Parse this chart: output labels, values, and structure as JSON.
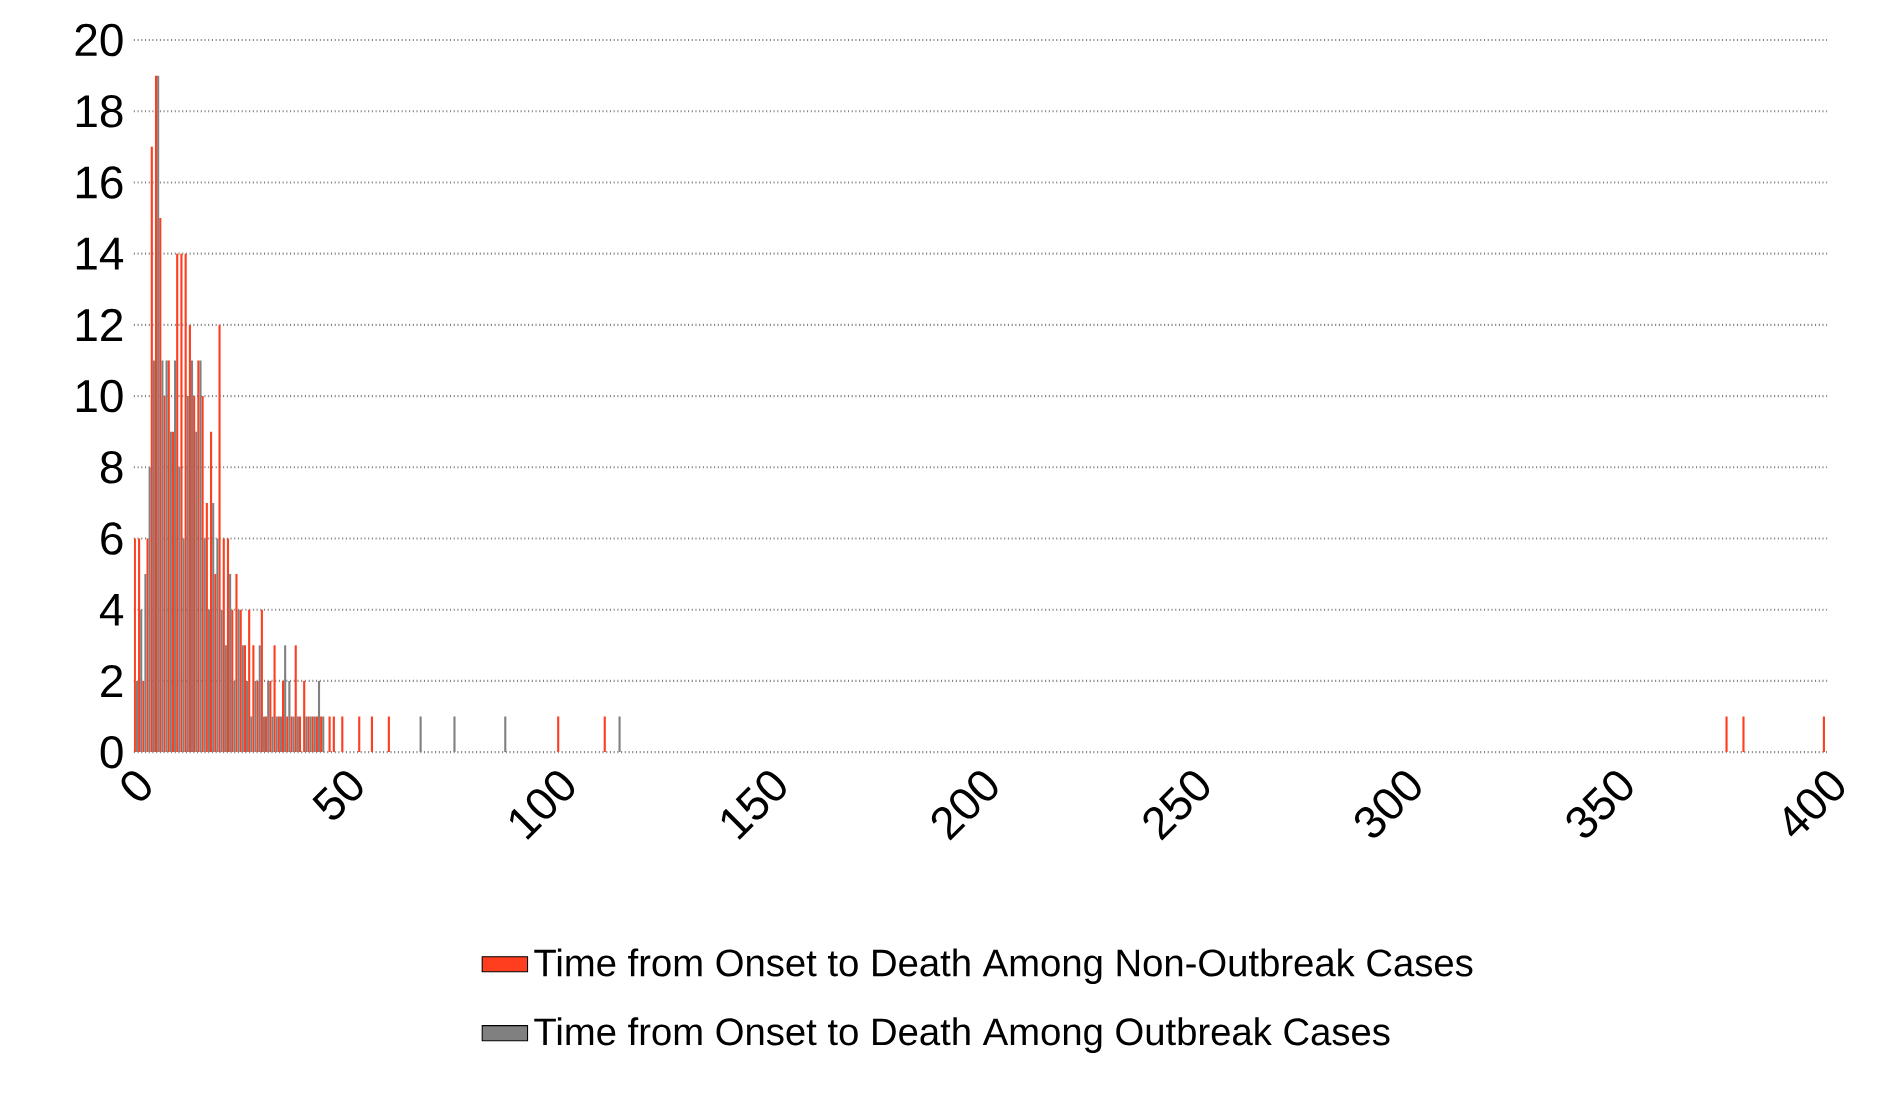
{
  "chart_data": {
    "type": "bar",
    "x": [
      0,
      1,
      2,
      3,
      4,
      5,
      6,
      7,
      8,
      9,
      10,
      11,
      12,
      13,
      14,
      15,
      16,
      17,
      18,
      19,
      20,
      21,
      22,
      23,
      24,
      25,
      26,
      27,
      28,
      29,
      30,
      31,
      32,
      33,
      34,
      35,
      36,
      37,
      38,
      39,
      40,
      41,
      42,
      43,
      44,
      45,
      46,
      47,
      48,
      49,
      53,
      56,
      60,
      67,
      75,
      87,
      100,
      111,
      114,
      376,
      380,
      399
    ],
    "series": [
      {
        "name": "Time from Onset to Death Among Non-Outbreak Cases",
        "color": "#ff3d1f",
        "values": [
          6,
          6,
          2,
          6,
          17,
          19,
          15,
          10,
          11,
          9,
          14,
          14,
          14,
          12,
          10,
          11,
          10,
          7,
          9,
          5,
          12,
          6,
          6,
          4,
          5,
          4,
          3,
          4,
          3,
          2,
          4,
          1,
          2,
          3,
          1,
          2,
          1,
          1,
          3,
          1,
          2,
          1,
          1,
          1,
          1,
          null,
          1,
          1,
          null,
          1,
          1,
          1,
          1,
          null,
          null,
          null,
          1,
          1,
          null,
          1,
          1,
          1
        ]
      },
      {
        "name": "Time from Onset to Death Among Outbreak Cases",
        "color": "#808080",
        "values": [
          2,
          4,
          5,
          8,
          11,
          19,
          11,
          11,
          9,
          11,
          8,
          6,
          10,
          11,
          9,
          11,
          6,
          4,
          7,
          6,
          4,
          3,
          5,
          2,
          4,
          3,
          2,
          1,
          2,
          3,
          1,
          2,
          1,
          1,
          1,
          3,
          2,
          1,
          1,
          null,
          1,
          1,
          1,
          2,
          1,
          null,
          null,
          null,
          null,
          null,
          null,
          null,
          null,
          1,
          1,
          1,
          null,
          null,
          1,
          null,
          null,
          null
        ]
      }
    ],
    "xlim": [
      0,
      400
    ],
    "xticks": [
      0,
      50,
      100,
      150,
      200,
      250,
      300,
      350,
      400
    ],
    "ylim": [
      0,
      20
    ],
    "yticks": [
      0,
      2,
      4,
      6,
      8,
      10,
      12,
      14,
      16,
      18,
      20
    ],
    "grid": "y",
    "legend": "bottom"
  }
}
